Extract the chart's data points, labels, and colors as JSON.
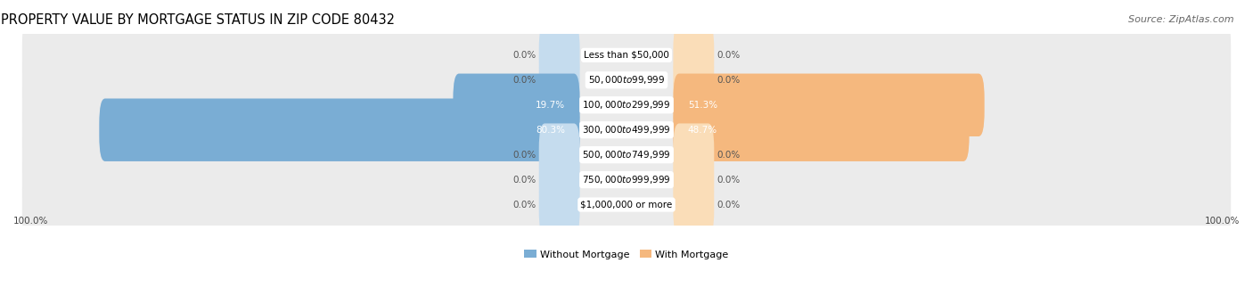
{
  "title": "PROPERTY VALUE BY MORTGAGE STATUS IN ZIP CODE 80432",
  "source": "Source: ZipAtlas.com",
  "categories": [
    "Less than $50,000",
    "$50,000 to $99,999",
    "$100,000 to $299,999",
    "$300,000 to $499,999",
    "$500,000 to $749,999",
    "$750,000 to $999,999",
    "$1,000,000 or more"
  ],
  "without_mortgage": [
    0.0,
    0.0,
    19.7,
    80.3,
    0.0,
    0.0,
    0.0
  ],
  "with_mortgage": [
    0.0,
    0.0,
    51.3,
    48.7,
    0.0,
    0.0,
    0.0
  ],
  "color_without": "#7aadd4",
  "color_with": "#f5b87e",
  "color_without_light": "#c5dcee",
  "color_with_light": "#faddb8",
  "row_bg_color": "#ebebeb",
  "title_fontsize": 10.5,
  "source_fontsize": 8,
  "label_fontsize": 7.5,
  "category_fontsize": 7.5,
  "legend_fontsize": 8,
  "axis_label_fontsize": 7.5,
  "max_val": 100.0,
  "stub_val": 5.0,
  "figsize": [
    14.06,
    3.41
  ],
  "dpi": 100
}
